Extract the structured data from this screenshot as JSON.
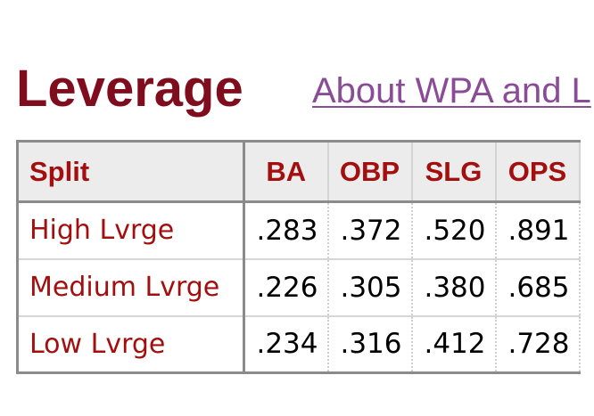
{
  "section": {
    "title": "Leverage",
    "about_link": "About WPA and L"
  },
  "table": {
    "headers": [
      "Split",
      "BA",
      "OBP",
      "SLG",
      "OPS"
    ],
    "rows": [
      {
        "split": "High Lvrge",
        "ba": ".283",
        "obp": ".372",
        "slg": ".520",
        "ops": ".891"
      },
      {
        "split": "Medium Lvrge",
        "ba": ".226",
        "obp": ".305",
        "slg": ".380",
        "ops": ".685"
      },
      {
        "split": "Low Lvrge",
        "ba": ".234",
        "obp": ".316",
        "slg": ".412",
        "ops": ".728"
      }
    ]
  },
  "colors": {
    "title": "#800d1d",
    "header_text": "#a30f0f",
    "link": "#8a4c96",
    "header_bg": "#ececec"
  }
}
